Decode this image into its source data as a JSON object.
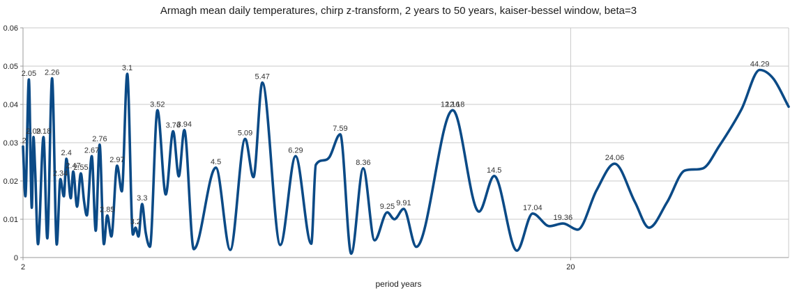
{
  "title": "Armagh mean daily temperatures, chirp z-transform, 2 years to 50 years, kaiser-bessel window, beta=3",
  "chart_data": {
    "type": "line",
    "title": "Armagh mean daily temperatures, chirp z-transform, 2 years to 50 years, kaiser-bessel window, beta=3",
    "xlabel": "period years",
    "ylabel": "",
    "x_scale": "log",
    "x_range": [
      2,
      50
    ],
    "y_range": [
      0,
      0.06
    ],
    "x_ticks": [
      2,
      20
    ],
    "x_tick_labels": [
      "2",
      "20"
    ],
    "x_gridlines": [
      20,
      50
    ],
    "y_ticks": [
      0,
      0.01,
      0.02,
      0.03,
      0.04,
      0.05,
      0.06
    ],
    "y_tick_labels": [
      "0",
      "0.01",
      "0.02",
      "0.03",
      "0.04",
      "0.05",
      "0.06"
    ],
    "grid": true,
    "legend": "none",
    "line_color": "#0b4a86",
    "grid_color": "#c9c9c9",
    "axis_color": "#9a9a9a",
    "points": [
      [
        2.0,
        0.029
      ],
      [
        2.02,
        0.016
      ],
      [
        2.05,
        0.0465
      ],
      [
        2.075,
        0.013
      ],
      [
        2.09,
        0.0315
      ],
      [
        2.105,
        0.0225
      ],
      [
        2.13,
        0.0035
      ],
      [
        2.18,
        0.0315
      ],
      [
        2.215,
        0.005
      ],
      [
        2.26,
        0.0468
      ],
      [
        2.305,
        0.0034
      ],
      [
        2.34,
        0.0205
      ],
      [
        2.375,
        0.016
      ],
      [
        2.4,
        0.0258
      ],
      [
        2.445,
        0.0155
      ],
      [
        2.47,
        0.0225
      ],
      [
        2.51,
        0.0133
      ],
      [
        2.55,
        0.022
      ],
      [
        2.585,
        0.0148
      ],
      [
        2.615,
        0.011
      ],
      [
        2.67,
        0.0265
      ],
      [
        2.715,
        0.007
      ],
      [
        2.76,
        0.0295
      ],
      [
        2.81,
        0.0035
      ],
      [
        2.85,
        0.011
      ],
      [
        2.9,
        0.0055
      ],
      [
        2.97,
        0.024
      ],
      [
        3.03,
        0.0173
      ],
      [
        3.1,
        0.048
      ],
      [
        3.175,
        0.006
      ],
      [
        3.21,
        0.0078
      ],
      [
        3.25,
        0.0055
      ],
      [
        3.3,
        0.014
      ],
      [
        3.35,
        0.0065
      ],
      [
        3.41,
        0.0028
      ],
      [
        3.52,
        0.0385
      ],
      [
        3.645,
        0.0165
      ],
      [
        3.76,
        0.033
      ],
      [
        3.85,
        0.0212
      ],
      [
        3.94,
        0.0333
      ],
      [
        4.1,
        0.0022
      ],
      [
        4.5,
        0.0235
      ],
      [
        4.78,
        0.002
      ],
      [
        5.09,
        0.031
      ],
      [
        5.27,
        0.021
      ],
      [
        5.47,
        0.0457
      ],
      [
        5.9,
        0.0033
      ],
      [
        6.29,
        0.0265
      ],
      [
        6.72,
        0.0036
      ],
      [
        6.85,
        0.0242
      ],
      [
        7.25,
        0.0262
      ],
      [
        7.59,
        0.0322
      ],
      [
        7.95,
        0.001
      ],
      [
        8.36,
        0.0233
      ],
      [
        8.77,
        0.0045
      ],
      [
        9.25,
        0.0118
      ],
      [
        9.53,
        0.01
      ],
      [
        9.91,
        0.0127
      ],
      [
        10.45,
        0.0028
      ],
      [
        12.18,
        0.0385
      ],
      [
        13.6,
        0.012
      ],
      [
        14.5,
        0.0213
      ],
      [
        15.95,
        0.0018
      ],
      [
        17.04,
        0.0115
      ],
      [
        18.3,
        0.0082
      ],
      [
        19.36,
        0.0089
      ],
      [
        20.6,
        0.0073
      ],
      [
        22.3,
        0.0176
      ],
      [
        24.06,
        0.0245
      ],
      [
        26.2,
        0.0145
      ],
      [
        27.8,
        0.0078
      ],
      [
        30,
        0.0145
      ],
      [
        32.3,
        0.0227
      ],
      [
        34.9,
        0.0233
      ],
      [
        37.3,
        0.029
      ],
      [
        41,
        0.0387
      ],
      [
        44.29,
        0.049
      ],
      [
        46.9,
        0.0467
      ],
      [
        50,
        0.0394
      ]
    ],
    "peak_labels": [
      {
        "x": 2.01,
        "y": 0.029,
        "label": "2"
      },
      {
        "x": 2.05,
        "y": 0.0465,
        "label": "2.05"
      },
      {
        "x": 2.09,
        "y": 0.0315,
        "label": "2.09"
      },
      {
        "x": 2.18,
        "y": 0.0315,
        "label": "2.18"
      },
      {
        "x": 2.26,
        "y": 0.0468,
        "label": "2.26"
      },
      {
        "x": 2.34,
        "y": 0.0205,
        "label": "2.34"
      },
      {
        "x": 2.4,
        "y": 0.0258,
        "label": "2.4"
      },
      {
        "x": 2.47,
        "y": 0.0225,
        "label": "2.47"
      },
      {
        "x": 2.55,
        "y": 0.022,
        "label": "2.55"
      },
      {
        "x": 2.67,
        "y": 0.0265,
        "label": "2.67"
      },
      {
        "x": 2.76,
        "y": 0.0295,
        "label": "2.76"
      },
      {
        "x": 2.85,
        "y": 0.011,
        "label": "2.85"
      },
      {
        "x": 2.97,
        "y": 0.024,
        "label": "2.97"
      },
      {
        "x": 3.1,
        "y": 0.048,
        "label": "3.1"
      },
      {
        "x": 3.21,
        "y": 0.0078,
        "label": "3.2"
      },
      {
        "x": 3.3,
        "y": 0.014,
        "label": "3.3"
      },
      {
        "x": 3.52,
        "y": 0.0385,
        "label": "3.52"
      },
      {
        "x": 3.76,
        "y": 0.033,
        "label": "3.76"
      },
      {
        "x": 3.94,
        "y": 0.0333,
        "label": "3.94"
      },
      {
        "x": 4.5,
        "y": 0.0235,
        "label": "4.5"
      },
      {
        "x": 5.09,
        "y": 0.031,
        "label": "5.09"
      },
      {
        "x": 5.47,
        "y": 0.0457,
        "label": "5.47"
      },
      {
        "x": 6.29,
        "y": 0.0265,
        "label": "6.29"
      },
      {
        "x": 7.59,
        "y": 0.0322,
        "label": "7.59"
      },
      {
        "x": 8.36,
        "y": 0.0233,
        "label": "8.36"
      },
      {
        "x": 9.25,
        "y": 0.0118,
        "label": "9.25"
      },
      {
        "x": 9.91,
        "y": 0.0127,
        "label": "9.91"
      },
      {
        "x": 12.05,
        "y": 0.0385,
        "label": "12.16"
      },
      {
        "x": 12.3,
        "y": 0.0385,
        "label": "12.18"
      },
      {
        "x": 14.5,
        "y": 0.0213,
        "label": "14.5"
      },
      {
        "x": 17.04,
        "y": 0.0115,
        "label": "17.04"
      },
      {
        "x": 19.36,
        "y": 0.0089,
        "label": "19.36"
      },
      {
        "x": 24.06,
        "y": 0.0245,
        "label": "24.06"
      },
      {
        "x": 44.29,
        "y": 0.049,
        "label": "44.29"
      }
    ]
  }
}
